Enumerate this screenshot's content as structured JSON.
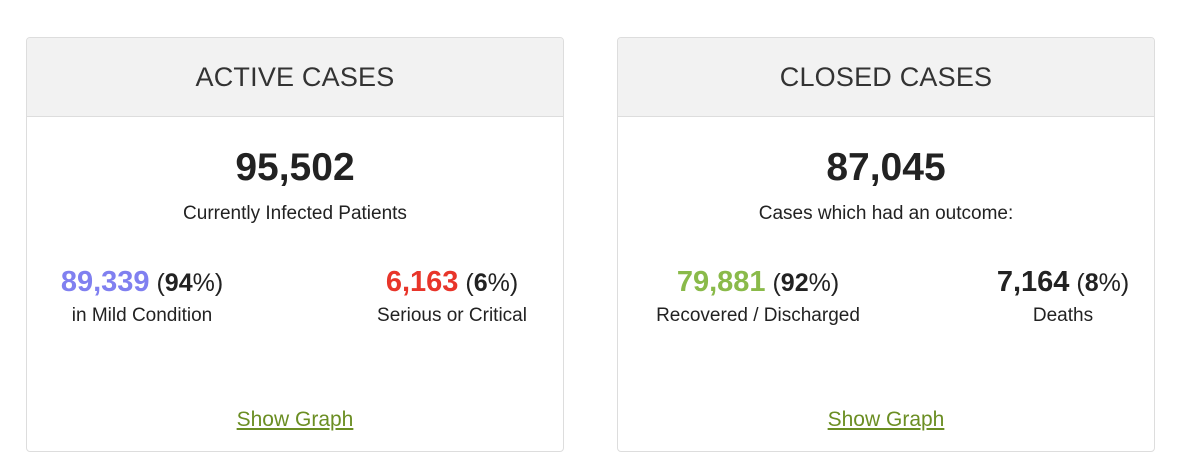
{
  "active": {
    "title": "ACTIVE CASES",
    "total": "95,502",
    "total_label": "Currently Infected Patients",
    "mild": {
      "value": "89,339",
      "pct": "94",
      "label": "in Mild Condition",
      "color": "#8080f0"
    },
    "serious": {
      "value": "6,163",
      "pct": "6",
      "label": "Serious or Critical",
      "color": "#e8352a"
    },
    "link_label": "Show Graph"
  },
  "closed": {
    "title": "CLOSED CASES",
    "total": "87,045",
    "total_label": "Cases which had an outcome:",
    "recovered": {
      "value": "79,881",
      "pct": "92",
      "label": "Recovered / Discharged",
      "color": "#8aba4a"
    },
    "deaths": {
      "value": "7,164",
      "pct": "8",
      "label": "Deaths",
      "color": "#222222"
    },
    "link_label": "Show Graph"
  },
  "colors": {
    "link": "#6b8e23",
    "header_bg": "#f2f2f2",
    "border": "#dddddd"
  }
}
